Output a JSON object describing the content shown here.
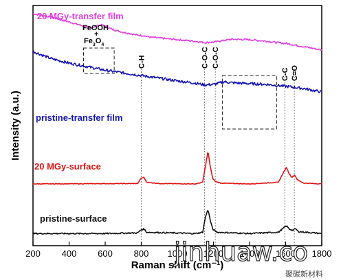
{
  "chart_data": {
    "type": "line",
    "xlabel": "Raman shift (cm⁻¹)",
    "ylabel": "Intensity (a.u.)",
    "xlim": [
      200,
      1800
    ],
    "x_ticks": [
      "200",
      "400",
      "600",
      "800",
      "1000",
      "1200",
      "1400",
      "1600",
      "1800"
    ],
    "legend": "none; series are labeled directly on the plot",
    "series": [
      {
        "name": "20 MGy-transfer film",
        "color": "#e040e0",
        "points": [
          [
            200,
            1.0
          ],
          [
            300,
            0.92
          ],
          [
            400,
            0.8
          ],
          [
            480,
            0.7
          ],
          [
            520,
            0.66
          ],
          [
            550,
            0.7
          ],
          [
            575,
            0.73
          ],
          [
            600,
            0.7
          ],
          [
            640,
            0.62
          ],
          [
            700,
            0.55
          ],
          [
            780,
            0.48
          ],
          [
            810,
            0.47
          ],
          [
            850,
            0.43
          ],
          [
            900,
            0.41
          ],
          [
            1000,
            0.37
          ],
          [
            1100,
            0.33
          ],
          [
            1150,
            0.3
          ],
          [
            1200,
            0.31
          ],
          [
            1300,
            0.38
          ],
          [
            1400,
            0.37
          ],
          [
            1500,
            0.33
          ],
          [
            1550,
            0.3
          ],
          [
            1600,
            0.28
          ],
          [
            1700,
            0.2
          ],
          [
            1800,
            0.12
          ]
        ]
      },
      {
        "name": "pristine-transfer film",
        "color": "#1414b4",
        "points": [
          [
            200,
            1.0
          ],
          [
            300,
            0.84
          ],
          [
            400,
            0.74
          ],
          [
            500,
            0.66
          ],
          [
            600,
            0.58
          ],
          [
            700,
            0.52
          ],
          [
            800,
            0.46
          ],
          [
            900,
            0.4
          ],
          [
            1000,
            0.34
          ],
          [
            1100,
            0.29
          ],
          [
            1150,
            0.25
          ],
          [
            1200,
            0.26
          ],
          [
            1260,
            0.32
          ],
          [
            1300,
            0.3
          ],
          [
            1400,
            0.28
          ],
          [
            1500,
            0.26
          ],
          [
            1600,
            0.22
          ],
          [
            1700,
            0.17
          ],
          [
            1800,
            0.09
          ]
        ]
      },
      {
        "name": "20 MGy-surface",
        "color": "#e01414",
        "points": [
          [
            200,
            0.2
          ],
          [
            780,
            0.21
          ],
          [
            800,
            0.34
          ],
          [
            815,
            0.36
          ],
          [
            830,
            0.24
          ],
          [
            900,
            0.21
          ],
          [
            1100,
            0.2
          ],
          [
            1140,
            0.24
          ],
          [
            1155,
            0.62
          ],
          [
            1170,
            1.0
          ],
          [
            1180,
            0.68
          ],
          [
            1195,
            0.34
          ],
          [
            1210,
            0.26
          ],
          [
            1240,
            0.22
          ],
          [
            1400,
            0.2
          ],
          [
            1560,
            0.24
          ],
          [
            1590,
            0.5
          ],
          [
            1605,
            0.6
          ],
          [
            1620,
            0.44
          ],
          [
            1635,
            0.36
          ],
          [
            1650,
            0.42
          ],
          [
            1665,
            0.3
          ],
          [
            1700,
            0.22
          ],
          [
            1800,
            0.2
          ]
        ]
      },
      {
        "name": "pristine-surface",
        "color": "#111111",
        "points": [
          [
            200,
            0.1
          ],
          [
            600,
            0.1
          ],
          [
            780,
            0.12
          ],
          [
            800,
            0.22
          ],
          [
            815,
            0.24
          ],
          [
            830,
            0.14
          ],
          [
            1100,
            0.1
          ],
          [
            1140,
            0.14
          ],
          [
            1155,
            0.6
          ],
          [
            1170,
            0.86
          ],
          [
            1180,
            0.56
          ],
          [
            1195,
            0.24
          ],
          [
            1220,
            0.14
          ],
          [
            1400,
            0.1
          ],
          [
            1560,
            0.14
          ],
          [
            1590,
            0.28
          ],
          [
            1605,
            0.34
          ],
          [
            1620,
            0.24
          ],
          [
            1640,
            0.2
          ],
          [
            1655,
            0.25
          ],
          [
            1670,
            0.16
          ],
          [
            1800,
            0.1
          ]
        ]
      }
    ],
    "peak_labels": [
      {
        "text": "C-H",
        "x": 800
      },
      {
        "text": "C-O-C",
        "x": 1150
      },
      {
        "text": "C-O-C",
        "x": 1210
      },
      {
        "text": "C-C",
        "x": 1595
      },
      {
        "text": "C=O",
        "x": 1648
      }
    ],
    "annotations": {
      "feooh": "FeOOH",
      "plus": "+",
      "fe": "Fe",
      "sub1": "3",
      "o": "O",
      "sub2": "4"
    },
    "highlight_regions": [
      {
        "x_from": 480,
        "x_to": 650
      },
      {
        "x_from": 1250,
        "x_to": 1550
      }
    ]
  },
  "watermark": {
    "text": "jinhuaw.co",
    "small_text": "聚碳新材料"
  }
}
